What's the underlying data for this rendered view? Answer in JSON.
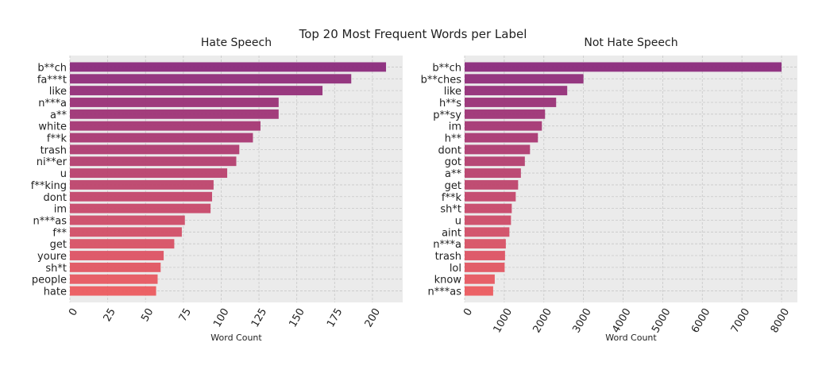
{
  "figure_title": "Top 20 Most Frequent Words per Label",
  "colors": {
    "panel_bg": "#ebebeb",
    "grid": "#c8c8c8",
    "bar_top": "#8b2a7c",
    "bar_bottom": "#ec5b5f"
  },
  "chart_data": [
    {
      "type": "bar",
      "orientation": "horizontal",
      "title": "Hate Speech",
      "xlabel": "Word Count",
      "ylabel": "",
      "xlim": [
        0,
        220
      ],
      "xticks": [
        0,
        25,
        50,
        75,
        100,
        125,
        150,
        175,
        200
      ],
      "grid": true,
      "categories": [
        "b**ch",
        "fa***t",
        "like",
        "n***a",
        "a**",
        "white",
        "f**k",
        "trash",
        "ni**er",
        "u",
        "f**king",
        "dont",
        "im",
        "n***as",
        "f**",
        "get",
        "youre",
        "sh*t",
        "people",
        "hate"
      ],
      "values": [
        209,
        186,
        167,
        138,
        138,
        126,
        121,
        112,
        110,
        104,
        95,
        94,
        93,
        76,
        74,
        69,
        62,
        60,
        58,
        57
      ]
    },
    {
      "type": "bar",
      "orientation": "horizontal",
      "title": "Not Hate Speech",
      "xlabel": "Word Count",
      "ylabel": "",
      "xlim": [
        0,
        8400
      ],
      "xticks": [
        0,
        1000,
        2000,
        3000,
        4000,
        5000,
        6000,
        7000,
        8000
      ],
      "grid": true,
      "categories": [
        "b**ch",
        "b**ches",
        "like",
        "h**s",
        "p**sy",
        "im",
        "h**",
        "dont",
        "got",
        "a**",
        "get",
        "f**k",
        "sh*t",
        "u",
        "aint",
        "n***a",
        "trash",
        "lol",
        "know",
        "n***as"
      ],
      "values": [
        8000,
        3000,
        2590,
        2310,
        2030,
        1950,
        1850,
        1650,
        1520,
        1420,
        1350,
        1290,
        1190,
        1170,
        1130,
        1040,
        1020,
        1010,
        760,
        720
      ]
    }
  ]
}
